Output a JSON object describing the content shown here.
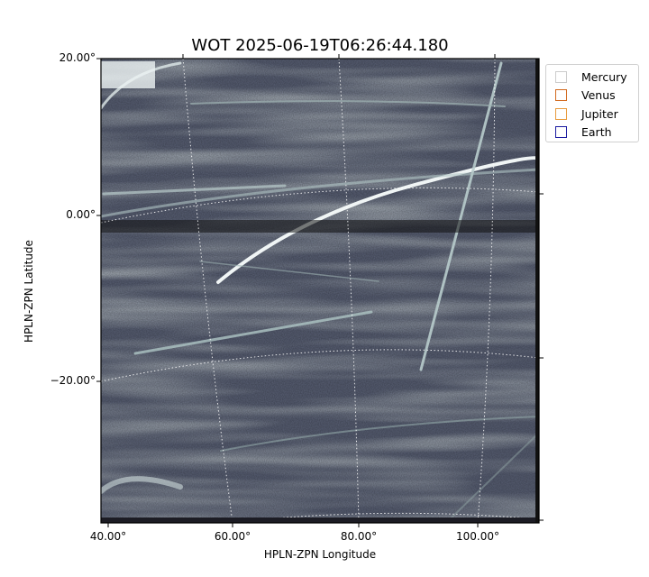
{
  "chart_data": {
    "type": "heatmap",
    "title": "WOT 2025-06-19T06:26:44.180",
    "xlabel": "HPLN-ZPN Longitude",
    "ylabel": "HPLN-ZPN Latitude",
    "xticks": [
      "40.00°",
      "60.00°",
      "80.00°",
      "100.00°"
    ],
    "yticks": [
      "20.00°",
      "0.00°",
      "−20.00°"
    ],
    "grid": true,
    "colormap": "bone",
    "legend_placement": "outside-top-right",
    "legend": [
      {
        "name": "Mercury",
        "color": "#cccccc"
      },
      {
        "name": "Venus",
        "color": "#d2691e"
      },
      {
        "name": "Jupiter",
        "color": "#e89a3c"
      },
      {
        "name": "Earth",
        "color": "#1a1aa0"
      }
    ]
  }
}
